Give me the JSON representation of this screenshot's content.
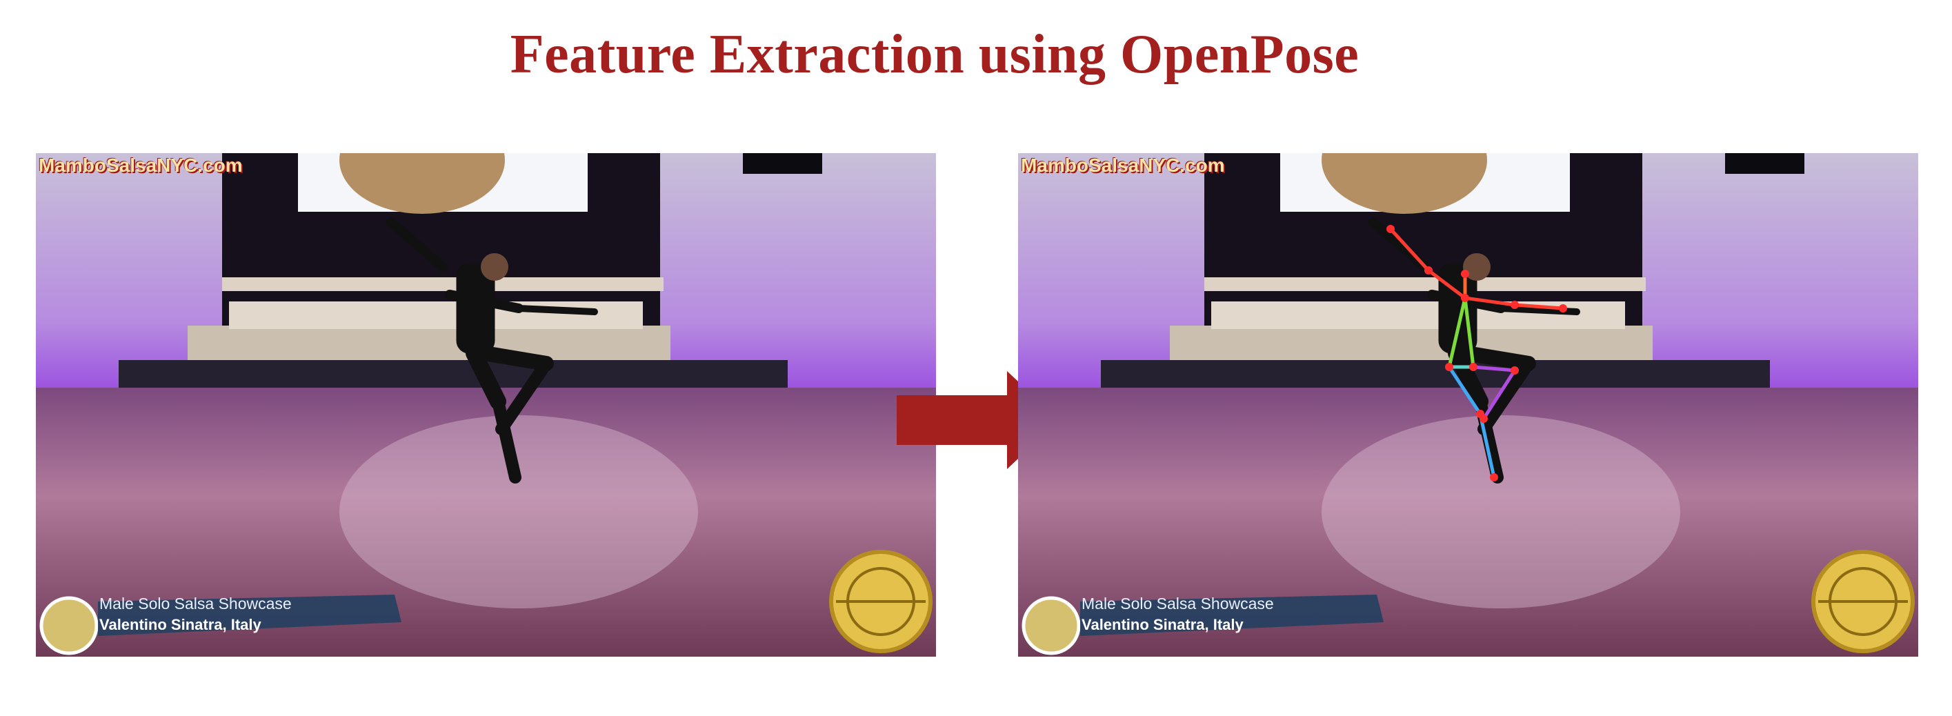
{
  "slide": {
    "title": "Feature Extraction using OpenPose"
  },
  "colors": {
    "title": "#a3201e",
    "arrow": "#a3201e",
    "skeleton_torso": "#7ddc3a",
    "skeleton_arm": "#ff3b30",
    "skeleton_leg_right": "#3fa9f5",
    "skeleton_leg_left": "#b04ce0"
  },
  "frames": [
    {
      "role": "original",
      "watermark": "MamboSalsaNYC.com",
      "caption_title": "Male Solo Salsa Showcase",
      "caption_name": "Valentino Sinatra, Italy",
      "has_skeleton": false
    },
    {
      "role": "openpose-output",
      "watermark": "MamboSalsaNYC.com",
      "caption_title": "Male Solo Salsa Showcase",
      "caption_name": "Valentino Sinatra, Italy",
      "has_skeleton": true
    }
  ]
}
